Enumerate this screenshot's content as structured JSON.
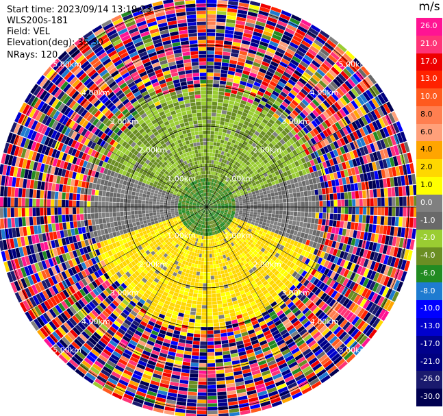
{
  "info": {
    "start_time": "Start time: 2023/09/14 13:19:23",
    "instrument": "WLS200s-181",
    "field": "Field: VEL",
    "elevation": "Elevation(deg): 35.30",
    "nrays": "NRays: 120"
  },
  "chart_data": {
    "type": "heatmap",
    "subtype": "ppi-polar",
    "field": "VEL",
    "unit": "m/s",
    "elevation_deg": 35.3,
    "n_rays": 120,
    "range_rings_km": [
      1.0,
      2.0,
      3.0,
      4.0,
      5.0
    ],
    "ring_labels": [
      "1.00km",
      "2.00km",
      "3.00km",
      "4.00km",
      "5.00km"
    ],
    "colorbar": {
      "ticks": [
        "26.0",
        "21.0",
        "17.0",
        "13.0",
        "10.0",
        "8.0",
        "6.0",
        "4.0",
        "2.0",
        "1.0",
        "0.0",
        "-1.0",
        "-2.0",
        "-4.0",
        "-6.0",
        "-8.0",
        "-10.0",
        "-13.0",
        "-17.0",
        "-21.0",
        "-26.0",
        "-30.0"
      ],
      "colors": [
        "#ff1493",
        "#ff3377",
        "#ee0000",
        "#ff2200",
        "#ff5a1e",
        "#ff7f50",
        "#ffa07a",
        "#ffa500",
        "#ffd700",
        "#ffff00",
        "#808080",
        "#696969",
        "#9acd32",
        "#6b8e23",
        "#228b22",
        "#1e7bd0",
        "#0000ff",
        "#0000cd",
        "#00008b",
        "#000080",
        "#1a1a6e",
        "#000050"
      ]
    },
    "velocity_regions": [
      {
        "region": "center",
        "range_km": [
          0.0,
          1.0
        ],
        "dominant_ms": -4.0
      },
      {
        "region": "north",
        "range_km": [
          1.0,
          2.5
        ],
        "dominant_ms": -2.0
      },
      {
        "region": "east-west",
        "range_km": [
          1.0,
          2.8
        ],
        "dominant_ms": 0.0
      },
      {
        "region": "south",
        "range_km": [
          0.5,
          3.0
        ],
        "dominant_ms": 2.0
      },
      {
        "region": "outer",
        "range_km": [
          3.0,
          5.8
        ],
        "dominant_ms": "noise"
      }
    ]
  }
}
